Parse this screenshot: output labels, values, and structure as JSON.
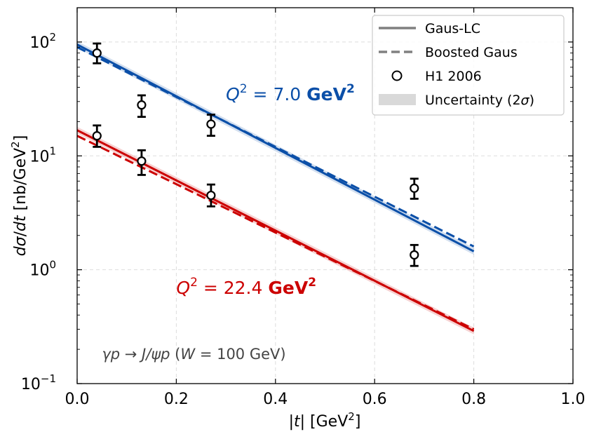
{
  "chart_data": {
    "type": "line",
    "title": "",
    "xlabel": "|t| [GeV²]",
    "ylabel": "dσ/dt [nb/GeV²]",
    "xlim": [
      0.0,
      1.0
    ],
    "ylim": [
      0.1,
      200
    ],
    "yscale": "log",
    "grid": true,
    "legend_position": "top-right",
    "x_ticks": [
      "0.0",
      "0.2",
      "0.4",
      "0.6",
      "0.8",
      "1.0"
    ],
    "x_tick_values": [
      0.0,
      0.2,
      0.4,
      0.6,
      0.8,
      1.0
    ],
    "y_ticks": [
      {
        "value": 0.1,
        "base": "10",
        "exp": "−1"
      },
      {
        "value": 1,
        "base": "10",
        "exp": "0"
      },
      {
        "value": 10,
        "base": "10",
        "exp": "1"
      },
      {
        "value": 100,
        "base": "10",
        "exp": "2"
      }
    ],
    "legend": [
      {
        "label": "Gaus-LC",
        "style": "solid"
      },
      {
        "label": "Boosted Gaus",
        "style": "dashed"
      },
      {
        "label": "H1 2006",
        "style": "marker"
      },
      {
        "label": "Uncertainty (2σ)",
        "style": "band"
      }
    ],
    "series": [
      {
        "name": "Gaus-LC Q2=7.0",
        "group": "Q2=7.0",
        "color": "#0b4fa8",
        "style": "solid",
        "x": [
          0.0,
          0.8
        ],
        "y": [
          95,
          1.45
        ],
        "band": 0.07
      },
      {
        "name": "Boosted Gaus Q2=7.0",
        "group": "Q2=7.0",
        "color": "#0b4fa8",
        "style": "dashed",
        "x": [
          0.0,
          0.8
        ],
        "y": [
          90,
          1.6
        ]
      },
      {
        "name": "Gaus-LC Q2=22.4",
        "group": "Q2=22.4",
        "color": "#cc0000",
        "style": "solid",
        "x": [
          0.0,
          0.8
        ],
        "y": [
          16.8,
          0.29
        ],
        "band": 0.07
      },
      {
        "name": "Boosted Gaus Q2=22.4",
        "group": "Q2=22.4",
        "color": "#cc0000",
        "style": "dashed",
        "x": [
          0.0,
          0.8
        ],
        "y": [
          15.0,
          0.3
        ]
      }
    ],
    "data_points": [
      {
        "group": "Q2=7.0",
        "x": 0.04,
        "y": 80,
        "lo": 65,
        "hi": 97
      },
      {
        "group": "Q2=7.0",
        "x": 0.13,
        "y": 28,
        "lo": 22,
        "hi": 34
      },
      {
        "group": "Q2=7.0",
        "x": 0.27,
        "y": 19,
        "lo": 15,
        "hi": 23
      },
      {
        "group": "Q2=7.0",
        "x": 0.68,
        "y": 5.2,
        "lo": 4.2,
        "hi": 6.3
      },
      {
        "group": "Q2=22.4",
        "x": 0.04,
        "y": 15,
        "lo": 12,
        "hi": 18.5
      },
      {
        "group": "Q2=22.4",
        "x": 0.13,
        "y": 9,
        "lo": 6.8,
        "hi": 11.2
      },
      {
        "group": "Q2=22.4",
        "x": 0.27,
        "y": 4.5,
        "lo": 3.6,
        "hi": 5.6
      },
      {
        "group": "Q2=22.4",
        "x": 0.68,
        "y": 1.35,
        "lo": 1.08,
        "hi": 1.65
      }
    ],
    "annotations": [
      {
        "group": "Q2=7.0",
        "x": 0.3,
        "y": 35,
        "pre": "Q",
        "sup": "2",
        "mid": " = 7.0 ",
        "bold": "GeV",
        "bold_sup": "2"
      },
      {
        "group": "Q2=22.4",
        "x": 0.2,
        "y": 0.7,
        "pre": "Q",
        "sup": "2",
        "mid": " = 22.4 ",
        "bold": "GeV",
        "bold_sup": "2"
      }
    ],
    "process_label": {
      "text_a": "γp → J/ψp",
      "text_b": " (",
      "text_c": "W",
      "text_d": " = 100 GeV)"
    }
  }
}
